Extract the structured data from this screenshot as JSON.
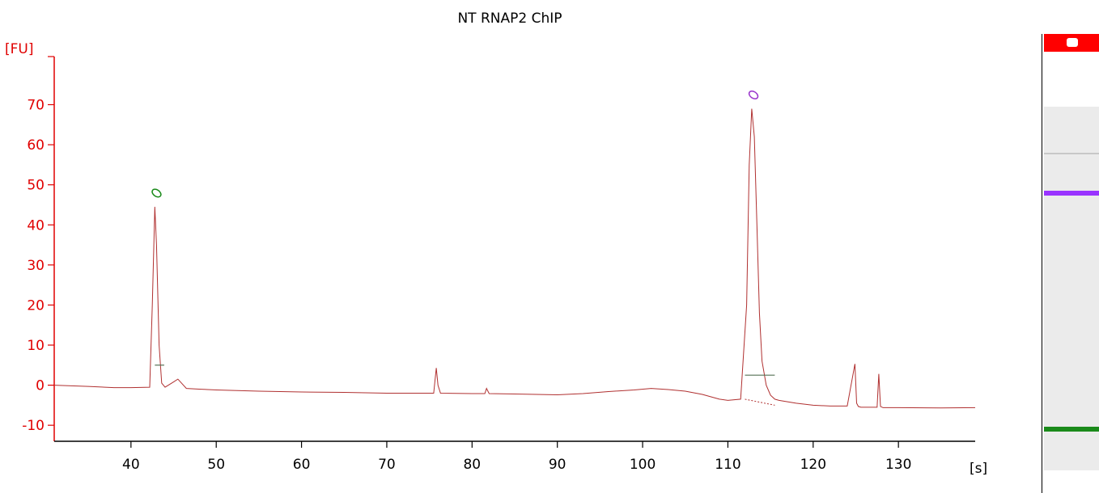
{
  "chart_data": {
    "type": "line",
    "title": "NT RNAP2 ChIP",
    "xlabel": "[s]",
    "ylabel": "[FU]",
    "xlim": [
      31,
      139
    ],
    "ylim": [
      -14,
      82
    ],
    "xticks": [
      40,
      50,
      60,
      70,
      80,
      90,
      100,
      110,
      120,
      130
    ],
    "yticks": [
      -10,
      0,
      10,
      20,
      30,
      40,
      50,
      60,
      70
    ],
    "grid": false,
    "colors": {
      "axis": "#e00000",
      "trace": "#b03030",
      "axis_x": "#000000"
    },
    "series": [
      {
        "x": [
          31,
          35,
          38,
          40,
          42.2,
          42.5,
          42.8,
          43.0,
          43.3,
          43.6,
          44.0,
          45.0,
          45.5,
          46.5,
          48,
          50,
          55,
          60,
          65,
          70,
          75.5,
          75.8,
          76.0,
          76.3,
          80,
          81.5,
          81.7,
          82,
          85,
          90,
          93,
          96,
          99,
          101,
          103,
          105,
          107,
          109,
          110,
          111.5,
          112.2,
          112.5,
          112.8,
          113.1,
          113.4,
          113.7,
          114.0,
          114.5,
          115.0,
          115.5,
          116,
          118,
          120,
          122,
          124,
          124.9,
          125.1,
          125.3,
          125.6,
          126,
          127.5,
          127.7,
          127.9,
          128.2,
          130,
          135,
          139
        ],
        "y": [
          0,
          -0.3,
          -0.6,
          -0.6,
          -0.5,
          20,
          44.5,
          35,
          10,
          0.5,
          -0.5,
          0.8,
          1.5,
          -0.8,
          -1,
          -1.2,
          -1.5,
          -1.7,
          -1.8,
          -2,
          -2,
          4.3,
          0,
          -2,
          -2.1,
          -2.1,
          -0.8,
          -2.1,
          -2.2,
          -2.4,
          -2.1,
          -1.6,
          -1.2,
          -0.8,
          -1.1,
          -1.5,
          -2.3,
          -3.5,
          -3.8,
          -3.5,
          20,
          55,
          69,
          62,
          40,
          18,
          6,
          0,
          -2.5,
          -3.5,
          -3.8,
          -4.5,
          -5,
          -5.2,
          -5.2,
          5.3,
          -4.5,
          -5.3,
          -5.5,
          -5.5,
          -5.5,
          2.8,
          -5.3,
          -5.6,
          -5.6,
          -5.7,
          -5.6
        ]
      }
    ],
    "peaks": [
      {
        "x": 43.0,
        "color": "#1a8a1a"
      },
      {
        "x": 113.0,
        "color": "#9933cc"
      }
    ]
  },
  "gel": {
    "bands": [
      {
        "color": "#ff0000"
      },
      {
        "color": "#c8c8c8"
      },
      {
        "color": "#9933ff"
      },
      {
        "color": "#1a8a1a"
      }
    ]
  }
}
